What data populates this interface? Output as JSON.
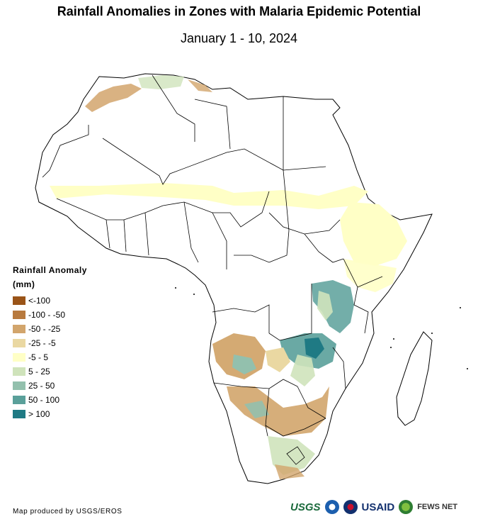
{
  "title": "Rainfall Anomalies in Zones with Malaria Epidemic Potential",
  "subtitle": "January 1 - 10, 2024",
  "legend": {
    "title": "Rainfall Anomaly",
    "unit": "(mm)",
    "items": [
      {
        "label": "<-100",
        "color": "#9a5418"
      },
      {
        "label": "-100 - -50",
        "color": "#b87a3e"
      },
      {
        "label": "-50 - -25",
        "color": "#d2a56c"
      },
      {
        "label": "-25 - -5",
        "color": "#ead8a2"
      },
      {
        "label": "-5 - 5",
        "color": "#ffffc6"
      },
      {
        "label": "5 - 25",
        "color": "#cfe3bb"
      },
      {
        "label": "25 - 50",
        "color": "#93c0ad"
      },
      {
        "label": "50 - 100",
        "color": "#5aa09a"
      },
      {
        "label": "> 100",
        "color": "#1f7a84"
      }
    ]
  },
  "credit": "Map produced by USGS/EROS",
  "logos": {
    "usgs": "USGS",
    "usaid": "USAID",
    "fews": "FEWS NET"
  }
}
